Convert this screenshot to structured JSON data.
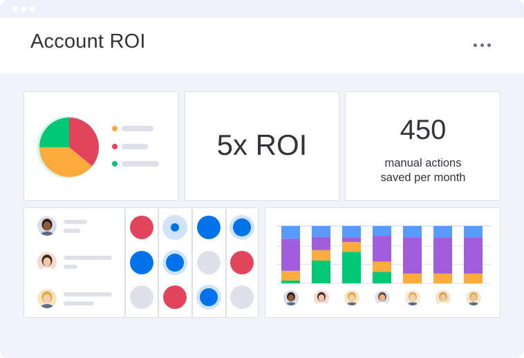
{
  "header": {
    "title": "Account ROI",
    "more_icon": "more-horizontal-icon"
  },
  "pie_widget": {
    "type": "pie",
    "slices": [
      {
        "color": "#e2445c",
        "fraction": 0.36
      },
      {
        "color": "#fdab3d",
        "fraction": 0.39
      },
      {
        "color": "#00c875",
        "fraction": 0.25
      }
    ],
    "legend_colors": [
      "#fdab3d",
      "#e2445c",
      "#00c875"
    ]
  },
  "roi_widget": {
    "value": "5x ROI"
  },
  "actions_widget": {
    "value": "450",
    "caption_line1": "manual actions",
    "caption_line2": "saved per month"
  },
  "people": [
    "person-1",
    "person-2",
    "person-3"
  ],
  "status_matrix": [
    [
      "red",
      "blue-dot",
      "blue",
      "blue-halo"
    ],
    [
      "blue",
      "blue-halo",
      "gray",
      "red"
    ],
    [
      "gray",
      "red",
      "blue-halo",
      "gray"
    ]
  ],
  "colors": {
    "red": "#e2445c",
    "orange": "#fdab3d",
    "green": "#00c875",
    "purple": "#a25ddc",
    "blue": "#0073ea",
    "light_blue": "#579bfc",
    "gray": "#dfe1ea"
  },
  "chart_data": {
    "type": "bar",
    "stacked": true,
    "categories": [
      "person-1",
      "person-2",
      "person-3",
      "person-4",
      "person-5",
      "person-6",
      "person-7"
    ],
    "series": [
      {
        "color": "#00c875",
        "values": [
          5,
          40,
          55,
          20,
          0,
          0,
          0
        ]
      },
      {
        "color": "#fdab3d",
        "values": [
          17,
          18,
          17,
          18,
          17,
          17,
          17
        ]
      },
      {
        "color": "#a25ddc",
        "values": [
          56,
          23,
          8,
          45,
          63,
          63,
          63
        ]
      },
      {
        "color": "#579bfc",
        "values": [
          22,
          19,
          20,
          17,
          20,
          20,
          20
        ]
      }
    ],
    "ylim": [
      0,
      100
    ],
    "grid": true
  }
}
